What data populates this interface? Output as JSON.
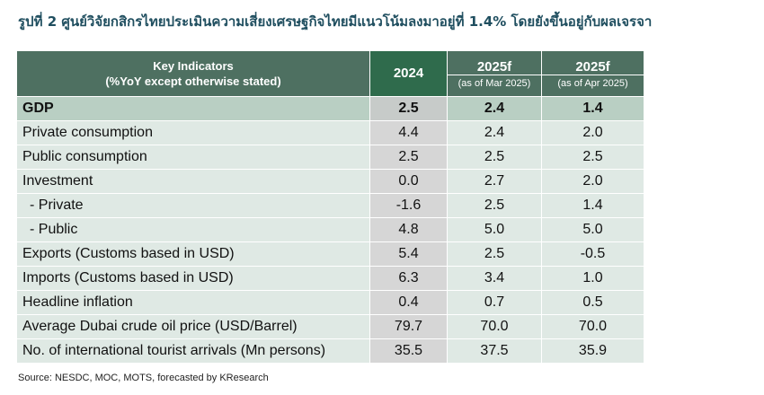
{
  "title": "รูปที่ 2 ศูนย์วิจัยกสิกรไทยประเมินความเสี่ยงเศรษฐกิจไทยมีแนวโน้มลงมาอยู่ที่ 1.4% โดยยังขึ้นอยู่กับผลเจรจา",
  "header": {
    "indicator_line1": "Key Indicators",
    "indicator_line2": "(%YoY except otherwise stated)",
    "col_2024": "2024",
    "col_mar_year": "2025f",
    "col_mar_note": "(as of Mar 2025)",
    "col_apr_year": "2025f",
    "col_apr_note": "(as of Apr 2025)"
  },
  "rows": [
    {
      "label": "GDP",
      "v2024": "2.5",
      "mar": "2.4",
      "apr": "1.4"
    },
    {
      "label": "Private consumption",
      "v2024": "4.4",
      "mar": "2.4",
      "apr": "2.0"
    },
    {
      "label": "Public consumption",
      "v2024": "2.5",
      "mar": "2.5",
      "apr": "2.5"
    },
    {
      "label": "Investment",
      "v2024": "0.0",
      "mar": "2.7",
      "apr": "2.0"
    },
    {
      "label": "- Private",
      "v2024": "-1.6",
      "mar": "2.5",
      "apr": "1.4"
    },
    {
      "label": "- Public",
      "v2024": "4.8",
      "mar": "5.0",
      "apr": "5.0"
    },
    {
      "label": "Exports (Customs based in USD)",
      "v2024": "5.4",
      "mar": "2.5",
      "apr": "-0.5"
    },
    {
      "label": "Imports (Customs based in USD)",
      "v2024": "6.3",
      "mar": "3.4",
      "apr": "1.0"
    },
    {
      "label": "Headline inflation",
      "v2024": "0.4",
      "mar": "0.7",
      "apr": "0.5"
    },
    {
      "label": "Average Dubai crude oil price (USD/Barrel)",
      "v2024": "79.7",
      "mar": "70.0",
      "apr": "70.0"
    },
    {
      "label": "No. of international tourist arrivals (Mn persons)",
      "v2024": "35.5",
      "mar": "37.5",
      "apr": "35.9"
    }
  ],
  "source": "Source: NESDC, MOC, MOTS, forecasted by KResearch",
  "colors": {
    "header_bg": "#4e7061",
    "header_2024_bg": "#2f6b4c",
    "row_bg": "#dfe9e4",
    "col_2024_bg": "#d6d6d6",
    "gdp_row_bg": "#b9cfc3"
  }
}
